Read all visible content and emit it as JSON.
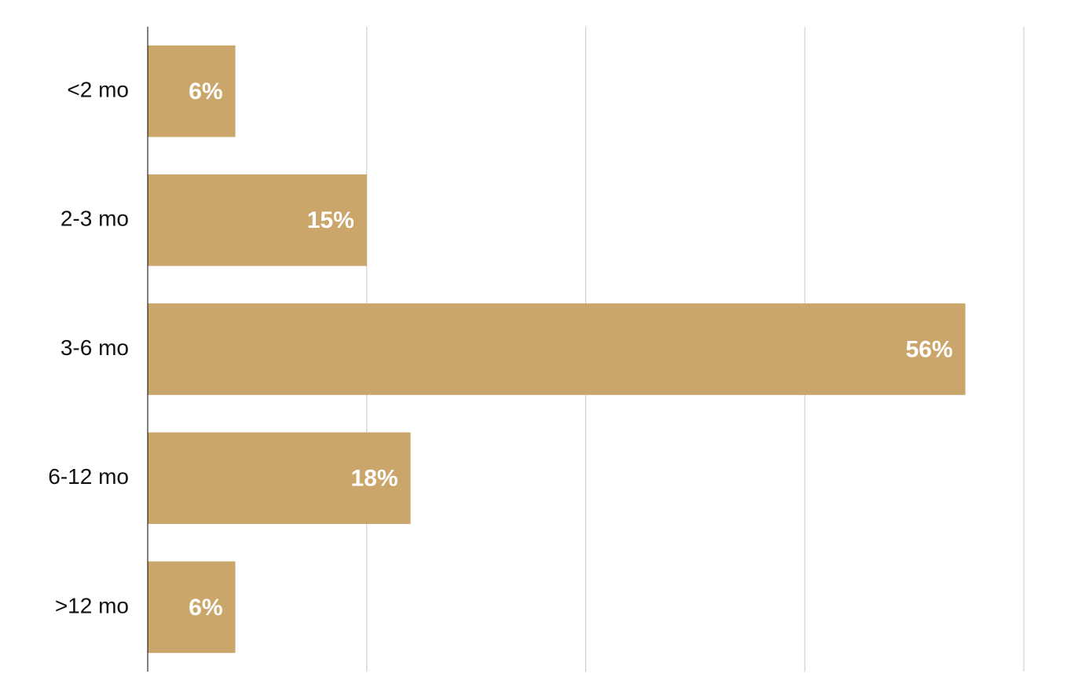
{
  "chart_data": {
    "type": "hbar",
    "categories": [
      "<2 mo",
      "2-3 mo",
      "3-6 mo",
      "6-12 mo",
      ">12 mo"
    ],
    "values": [
      6,
      15,
      56,
      18,
      6
    ],
    "value_labels": [
      "6%",
      "15%",
      "56%",
      "18%",
      "6%"
    ],
    "color": "#cba66b",
    "xlim": [
      0,
      60
    ],
    "xticks": [
      0,
      15,
      30,
      45,
      60
    ],
    "grid": true
  }
}
